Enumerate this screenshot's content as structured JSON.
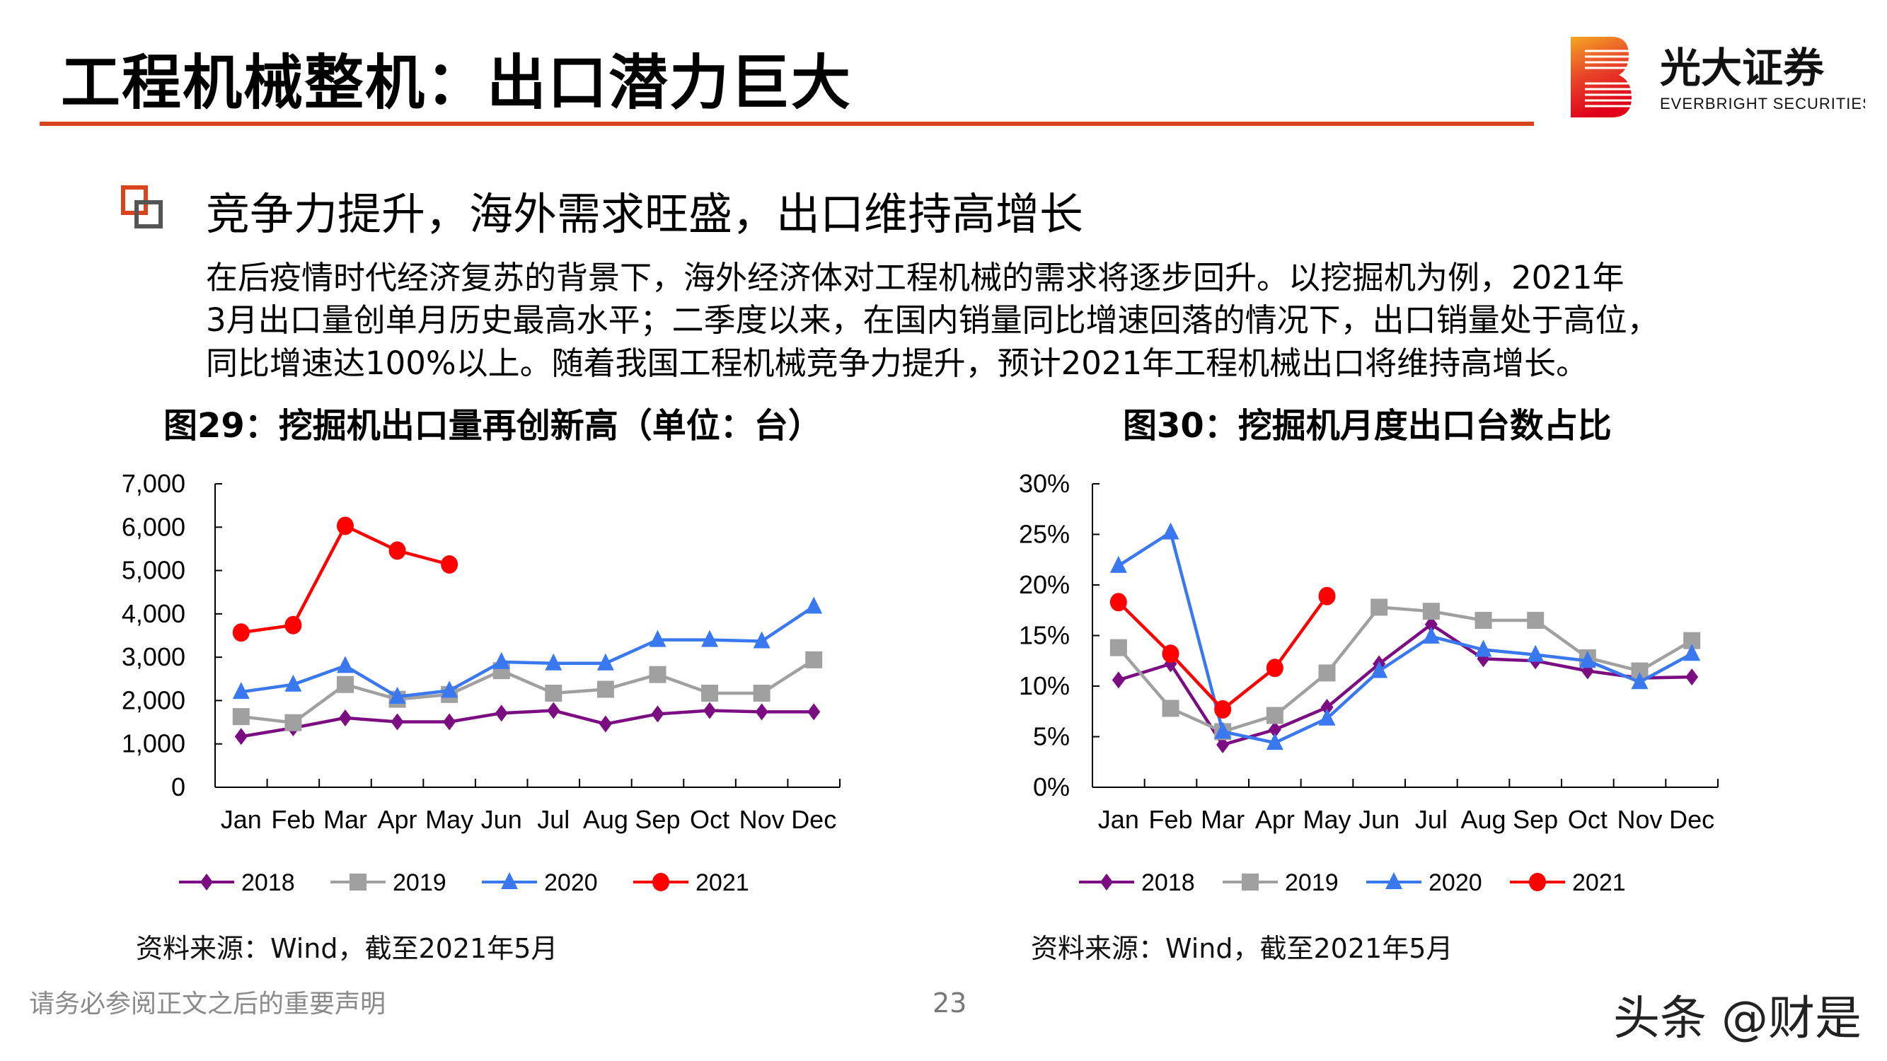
{
  "header": {
    "title": "工程机械整机：出口潜力巨大",
    "logo": {
      "cn": "光大证券",
      "en": "EVERBRIGHT SECURITIES"
    }
  },
  "section": {
    "bullet_icon": "double-square-bullet-icon",
    "heading": "竞争力提升，海外需求旺盛，出口维持高增长",
    "body_lines": [
      "在后疫情时代经济复苏的背景下，海外经济体对工程机械的需求将逐步回升。以挖掘机为例，2021年",
      "3月出口量创单月历史最高水平；二季度以来，在国内销量同比增速回落的情况下，出口销量处于高位，",
      "同比增速达100%以上。随着我国工程机械竞争力提升，预计2021年工程机械出口将维持高增长。"
    ]
  },
  "chart_data": [
    {
      "type": "line",
      "title": "图29：挖掘机出口量再创新高（单位：台）",
      "categories": [
        "Jan",
        "Feb",
        "Mar",
        "Apr",
        "May",
        "Jun",
        "Jul",
        "Aug",
        "Sep",
        "Oct",
        "Nov",
        "Dec"
      ],
      "ylim": [
        0,
        7000
      ],
      "yticks": [
        "0",
        "1,000",
        "2,000",
        "3,000",
        "4,000",
        "5,000",
        "6,000",
        "7,000"
      ],
      "grid": false,
      "legend": "bottom",
      "series": [
        {
          "name": "2018",
          "color": "#7B0C82",
          "marker": "diamond",
          "values": [
            1170,
            1370,
            1600,
            1510,
            1510,
            1710,
            1770,
            1460,
            1690,
            1770,
            1740,
            1740
          ]
        },
        {
          "name": "2019",
          "color": "#A0A0A0",
          "marker": "square",
          "values": [
            1630,
            1490,
            2370,
            2030,
            2140,
            2690,
            2170,
            2260,
            2600,
            2170,
            2170,
            2940
          ]
        },
        {
          "name": "2020",
          "color": "#3A78F0",
          "marker": "triangle",
          "values": [
            2200,
            2370,
            2800,
            2090,
            2230,
            2890,
            2860,
            2860,
            3400,
            3400,
            3370,
            4170
          ]
        },
        {
          "name": "2021",
          "color": "#FF0000",
          "marker": "circle",
          "values": [
            3570,
            3740,
            6030,
            5460,
            5140,
            null,
            null,
            null,
            null,
            null,
            null,
            null
          ]
        }
      ],
      "source": "资料来源：Wind，截至2021年5月"
    },
    {
      "type": "line",
      "title": "图30：挖掘机月度出口台数占比",
      "categories": [
        "Jan",
        "Feb",
        "Mar",
        "Apr",
        "May",
        "Jun",
        "Jul",
        "Aug",
        "Sep",
        "Oct",
        "Nov",
        "Dec"
      ],
      "ylim": [
        0,
        30
      ],
      "yticks": [
        "0%",
        "5%",
        "10%",
        "15%",
        "20%",
        "25%",
        "30%"
      ],
      "grid": false,
      "legend": "bottom",
      "series": [
        {
          "name": "2018",
          "color": "#7B0C82",
          "marker": "diamond",
          "values": [
            10.6,
            12.2,
            4.2,
            5.7,
            7.9,
            12.2,
            16.1,
            12.7,
            12.5,
            11.5,
            10.8,
            10.9
          ]
        },
        {
          "name": "2019",
          "color": "#A0A0A0",
          "marker": "square",
          "values": [
            13.8,
            7.8,
            5.5,
            7.1,
            11.3,
            17.8,
            17.4,
            16.5,
            16.5,
            12.8,
            11.5,
            14.5
          ]
        },
        {
          "name": "2020",
          "color": "#3A78F0",
          "marker": "triangle",
          "values": [
            21.9,
            25.2,
            5.5,
            4.4,
            6.8,
            11.5,
            14.9,
            13.6,
            13.1,
            12.5,
            10.4,
            13.2
          ]
        },
        {
          "name": "2021",
          "color": "#FF0000",
          "marker": "circle",
          "values": [
            18.3,
            13.2,
            7.7,
            11.8,
            18.9,
            null,
            null,
            null,
            null,
            null,
            null,
            null
          ]
        }
      ],
      "source": "资料来源：Wind，截至2021年5月"
    }
  ],
  "footer": {
    "disclaimer": "请务必参阅正文之后的重要声明",
    "page_number": "23",
    "watermark": "头条 @财是"
  }
}
